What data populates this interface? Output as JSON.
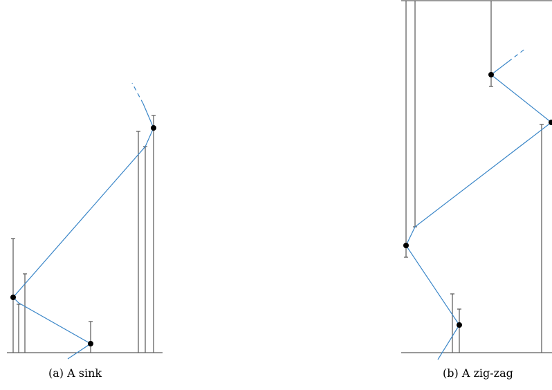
{
  "captions": {
    "a": "(a) A sink",
    "b": "(b) A zig-zag"
  },
  "colors": {
    "path": "#3a86c8",
    "bar": "#555555",
    "axis": "#333333",
    "node": "#000000"
  }
}
